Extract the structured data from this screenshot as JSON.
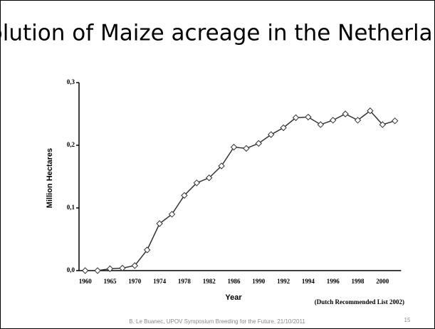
{
  "chart_data": {
    "type": "line",
    "title": "Evolution of Maize acreage in the Netherlands",
    "y_label": "Million Hectares",
    "x_label": "Year",
    "annotation": "(Dutch Recommended List 2002)",
    "footer": "B. Le Buanec, UPOV Symposium Breeding for the Future, 21/10/2011",
    "page_number": "15",
    "categories": [
      "1960",
      null,
      "1965",
      null,
      "1970",
      null,
      "1974",
      null,
      "1978",
      null,
      "1982",
      null,
      "1986",
      null,
      "1990",
      null,
      "1992",
      null,
      "1994",
      null,
      "1996",
      null,
      "1998",
      null,
      "2000",
      null
    ],
    "values": [
      0,
      0,
      0.003,
      0.004,
      0.008,
      0.033,
      0.075,
      0.09,
      0.12,
      0.14,
      0.148,
      0.167,
      0.197,
      0.195,
      0.203,
      0.217,
      0.228,
      0.244,
      0.245,
      0.233,
      0.24,
      0.25,
      0.24,
      0.255,
      0.233,
      0.239
    ],
    "color": "#333333",
    "ylim": [
      0,
      0.3
    ],
    "yticks": [
      {
        "value": 0,
        "label": "0,0"
      },
      {
        "value": 0.1,
        "label": "0,1"
      },
      {
        "value": 0.2,
        "label": "0,2"
      },
      {
        "value": 0.3,
        "label": "0,3"
      }
    ]
  }
}
